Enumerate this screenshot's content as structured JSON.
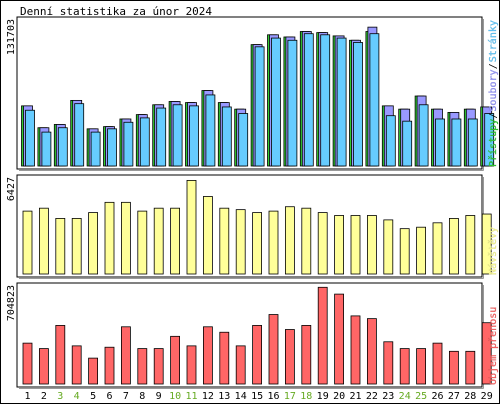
{
  "chart_data": [
    {
      "type": "bar",
      "title": "Denní statistika za únor 2024",
      "y_max_label": "131703",
      "legend": [
        {
          "label": "Přístupy",
          "color": "#33CC33"
        },
        {
          "label": "Soubory",
          "color": "#9999FF"
        },
        {
          "label": "Stránky",
          "color": "#66CCFF"
        }
      ],
      "categories": [
        "1",
        "2",
        "3",
        "4",
        "5",
        "6",
        "7",
        "8",
        "9",
        "10",
        "11",
        "12",
        "13",
        "14",
        "15",
        "16",
        "17",
        "18",
        "19",
        "20",
        "21",
        "22",
        "23",
        "24",
        "25",
        "26",
        "27",
        "28",
        "29"
      ],
      "weekend_days": [
        "3",
        "4",
        "10",
        "11",
        "17",
        "18",
        "24",
        "25"
      ],
      "ylim": [
        0,
        131703
      ],
      "series": [
        {
          "name": "Přístupy",
          "color": "#33CC33",
          "values": [
            55000,
            35000,
            38000,
            60000,
            34000,
            36000,
            43000,
            47000,
            56000,
            59000,
            58000,
            69000,
            58000,
            52000,
            111000,
            120000,
            118000,
            123000,
            122000,
            119000,
            115000,
            123000,
            55000,
            52000,
            64000,
            52000,
            49000,
            52000,
            54000
          ]
        },
        {
          "name": "Soubory",
          "color": "#9999FF",
          "values": [
            55000,
            35000,
            38000,
            60000,
            34000,
            36000,
            43000,
            47000,
            56000,
            59000,
            58000,
            69000,
            58000,
            52000,
            111000,
            120000,
            118000,
            123000,
            122000,
            119000,
            115000,
            127000,
            55000,
            52000,
            64000,
            52000,
            49000,
            52000,
            54000
          ]
        },
        {
          "name": "Stránky",
          "color": "#66CCFF",
          "values": [
            51000,
            31000,
            35000,
            57000,
            31000,
            34000,
            40000,
            44000,
            53000,
            56000,
            55000,
            65000,
            54000,
            48000,
            109000,
            117000,
            115000,
            121000,
            120000,
            117000,
            113000,
            121000,
            46000,
            41000,
            56000,
            43000,
            43000,
            43000,
            48000
          ]
        }
      ]
    },
    {
      "type": "bar",
      "y_max_label": "6427",
      "legend": [
        {
          "label": "Návštěvy",
          "color": "#FFFF99"
        }
      ],
      "categories": [
        "1",
        "2",
        "3",
        "4",
        "5",
        "6",
        "7",
        "8",
        "9",
        "10",
        "11",
        "12",
        "13",
        "14",
        "15",
        "16",
        "17",
        "18",
        "19",
        "20",
        "21",
        "22",
        "23",
        "24",
        "25",
        "26",
        "27",
        "28",
        "29"
      ],
      "ylim": [
        0,
        6427
      ],
      "series": [
        {
          "name": "Návštěvy",
          "color": "#FFFF99",
          "values": [
            4300,
            4500,
            3800,
            3800,
            4200,
            4900,
            4900,
            4300,
            4500,
            4500,
            6400,
            5300,
            4500,
            4400,
            4200,
            4300,
            4600,
            4500,
            4200,
            4000,
            4000,
            4000,
            3700,
            3100,
            3200,
            3500,
            3800,
            4000,
            4100
          ]
        }
      ]
    },
    {
      "type": "bar",
      "y_max_label": "704823",
      "legend": [
        {
          "label": "Objem přenosu",
          "color": "#FF6666"
        }
      ],
      "categories": [
        "1",
        "2",
        "3",
        "4",
        "5",
        "6",
        "7",
        "8",
        "9",
        "10",
        "11",
        "12",
        "13",
        "14",
        "15",
        "16",
        "17",
        "18",
        "19",
        "20",
        "21",
        "22",
        "23",
        "24",
        "25",
        "26",
        "27",
        "28",
        "29"
      ],
      "ylim": [
        0,
        704823
      ],
      "series": [
        {
          "name": "Objem přenosu",
          "color": "#FF6666",
          "values": [
            300000,
            260000,
            430000,
            280000,
            190000,
            270000,
            420000,
            260000,
            260000,
            350000,
            280000,
            420000,
            380000,
            280000,
            430000,
            510000,
            400000,
            430000,
            710000,
            660000,
            500000,
            480000,
            310000,
            260000,
            260000,
            300000,
            240000,
            240000,
            450000
          ]
        }
      ]
    }
  ]
}
